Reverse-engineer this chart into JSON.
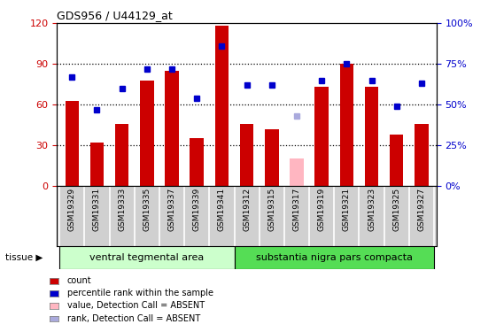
{
  "title": "GDS956 / U44129_at",
  "samples": [
    "GSM19329",
    "GSM19331",
    "GSM19333",
    "GSM19335",
    "GSM19337",
    "GSM19339",
    "GSM19341",
    "GSM19312",
    "GSM19315",
    "GSM19317",
    "GSM19319",
    "GSM19321",
    "GSM19323",
    "GSM19325",
    "GSM19327"
  ],
  "bar_values": [
    63,
    32,
    46,
    78,
    85,
    35,
    118,
    46,
    42,
    null,
    73,
    90,
    73,
    38,
    46
  ],
  "absent_bar_value": 20,
  "absent_bar_index": 9,
  "rank_values": [
    67,
    47,
    60,
    72,
    72,
    54,
    86,
    62,
    62,
    null,
    65,
    75,
    65,
    49,
    63
  ],
  "absent_rank_value": 43,
  "absent_rank_index": 9,
  "bar_color": "#CC0000",
  "absent_bar_color": "#FFB6C1",
  "rank_color": "#0000CC",
  "absent_rank_color": "#AAAADD",
  "ylim_left": [
    0,
    120
  ],
  "ylim_right": [
    0,
    100
  ],
  "yticks_left": [
    0,
    30,
    60,
    90,
    120
  ],
  "yticks_right": [
    0,
    25,
    50,
    75,
    100
  ],
  "ytick_labels_right": [
    "0%",
    "25%",
    "50%",
    "75%",
    "100%"
  ],
  "groups": [
    {
      "label": "ventral tegmental area",
      "start": 0,
      "end": 7,
      "color": "#CCFFCC"
    },
    {
      "label": "substantia nigra pars compacta",
      "start": 7,
      "end": 15,
      "color": "#55DD55"
    }
  ],
  "left_ycolor": "#CC0000",
  "right_ycolor": "#0000CC",
  "bar_width": 0.55,
  "rank_marker_size": 5,
  "legend_items": [
    {
      "color": "#CC0000",
      "label": "count"
    },
    {
      "color": "#0000CC",
      "label": "percentile rank within the sample"
    },
    {
      "color": "#FFB6C1",
      "label": "value, Detection Call = ABSENT"
    },
    {
      "color": "#AAAADD",
      "label": "rank, Detection Call = ABSENT"
    }
  ]
}
